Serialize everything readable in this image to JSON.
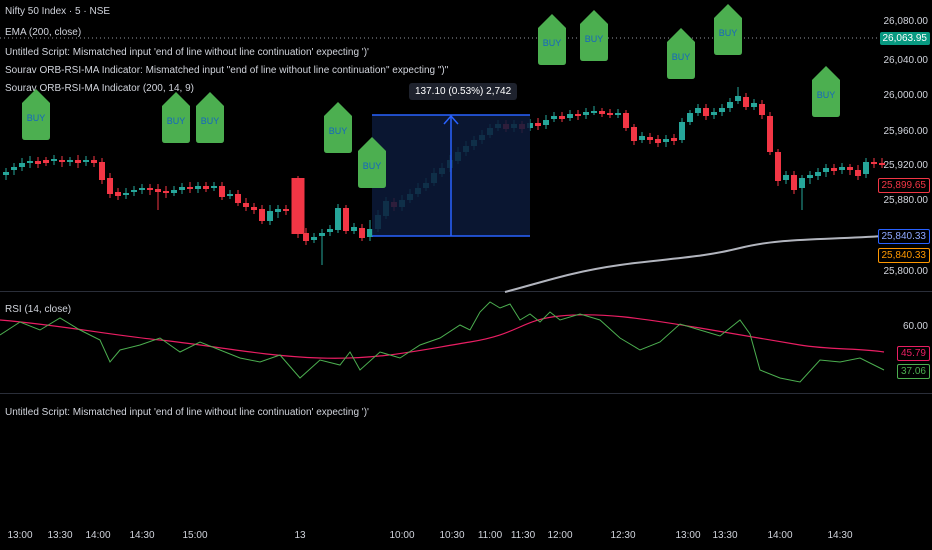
{
  "header": {
    "title": "Nifty 50 Index · 5 · NSE",
    "indicators": [
      "EMA (200, close)",
      "Untitled Script: Mismatched input 'end of line without line continuation' expecting ')'",
      "Sourav ORB-RSI-MA Indicator: Mismatched input \"end of line without line continuation\" expecting \")\"",
      "Sourav ORB-RSI-MA Indicator (200, 14, 9)"
    ]
  },
  "price_axis": {
    "labels": [
      "26,080.00",
      "26,040.00",
      "26,000.00",
      "25,960.00",
      "25,920.00",
      "25,880.00",
      "25,800.00"
    ],
    "tags": {
      "current": "26,063.95",
      "last": "25,899.65",
      "ema_a": "25,840.33",
      "ema_b": "25,840.33"
    }
  },
  "rsi_pane": {
    "title": "RSI (14, close)",
    "axis_label": "60.00",
    "tags": {
      "ma": "45.79",
      "rsi": "37.06"
    }
  },
  "third_pane": {
    "message": "Untitled Script: Mismatched input 'end of line without line continuation' expecting ')'"
  },
  "time_axis": [
    "13:00",
    "13:30",
    "14:00",
    "14:30",
    "15:00",
    "13",
    "10:00",
    "10:30",
    "11:00",
    "11:30",
    "12:00",
    "12:30",
    "13:00",
    "13:30",
    "14:00",
    "14:30"
  ],
  "measure": {
    "label": "137.10 (0.53%) 2,742"
  },
  "signals": {
    "buy_label": "BUY"
  },
  "colors": {
    "up": "#26a69a",
    "down": "#f23645",
    "ema": "#b2b5be",
    "rsi": "#4caf50",
    "rsi_ma": "#e91e63",
    "buy": "#4caf50",
    "measure": "#2962ff"
  }
}
